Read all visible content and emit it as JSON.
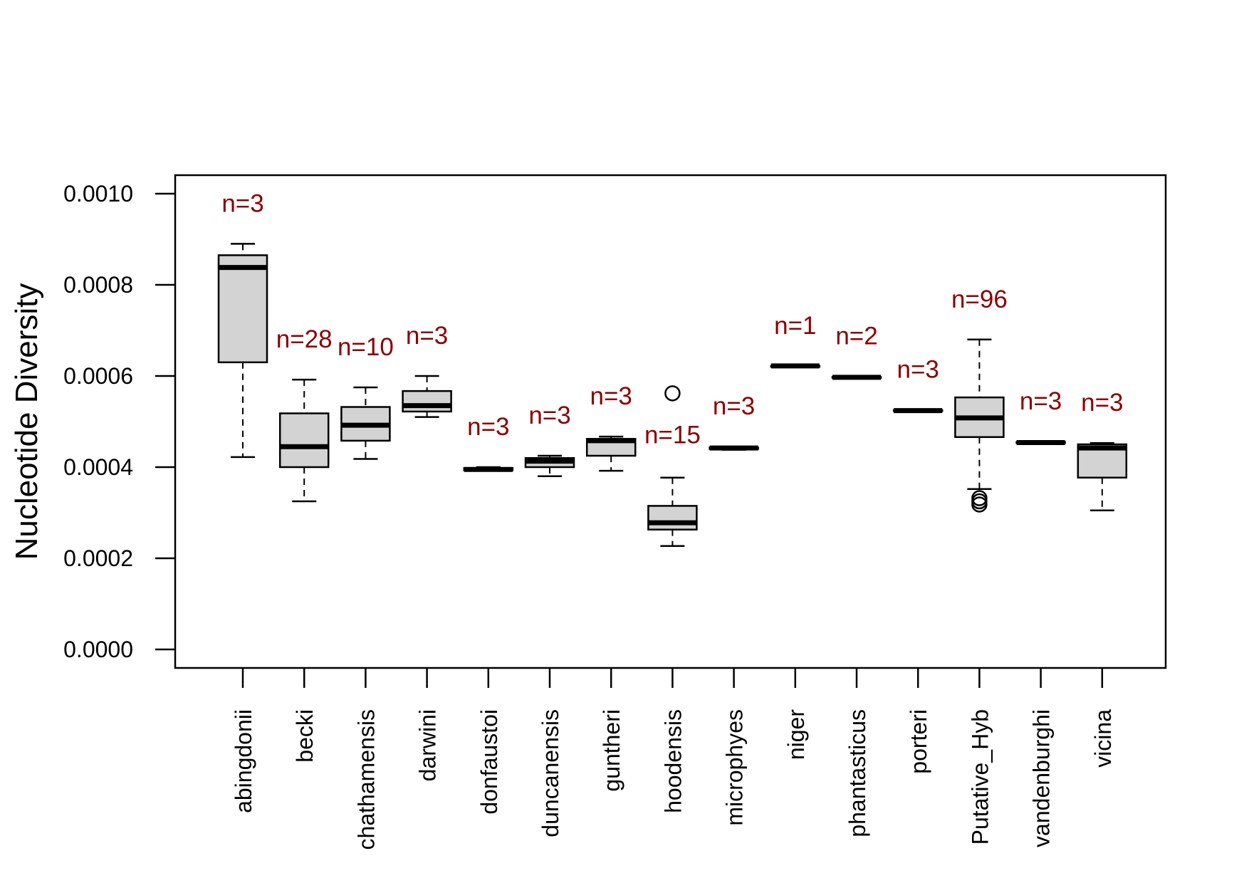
{
  "chart_data": {
    "type": "boxplot",
    "ylabel": "Nucleotide Diversity",
    "xlabel": "",
    "ylim": [
      0,
      0.00105
    ],
    "yticks": [
      "0.0000",
      "0.0002",
      "0.0004",
      "0.0006",
      "0.0008",
      "0.0010"
    ],
    "ytick_values": [
      0,
      0.0002,
      0.0004,
      0.0006,
      0.0008,
      0.001
    ],
    "grid": false,
    "colors": {
      "box_fill": "#d3d3d3",
      "count_label": "#8b0000",
      "line": "#000000"
    },
    "categories": [
      "abingdonii",
      "becki",
      "chathamensis",
      "darwini",
      "donfaustoi",
      "duncanensis",
      "guntheri",
      "hoodensis",
      "microphyes",
      "niger",
      "phantasticus",
      "porteri",
      "Putative_Hyb",
      "vandenburghi",
      "vicina"
    ],
    "counts": [
      "n=3",
      "n=28",
      "n=10",
      "n=3",
      "n=3",
      "n=3",
      "n=3",
      "n=15",
      "n=3",
      "n=1",
      "n=2",
      "n=3",
      "n=96",
      "n=3",
      "n=3"
    ],
    "boxes": [
      {
        "category": "abingdonii",
        "min": 0.000422,
        "q1": 0.00063,
        "median": 0.000838,
        "q3": 0.000865,
        "max": 0.00089,
        "outliers": []
      },
      {
        "category": "becki",
        "min": 0.000325,
        "q1": 0.0004,
        "median": 0.000445,
        "q3": 0.000518,
        "max": 0.000592,
        "outliers": []
      },
      {
        "category": "chathamensis",
        "min": 0.000418,
        "q1": 0.000458,
        "median": 0.000492,
        "q3": 0.000532,
        "max": 0.000575,
        "outliers": []
      },
      {
        "category": "darwini",
        "min": 0.00051,
        "q1": 0.000522,
        "median": 0.000535,
        "q3": 0.000567,
        "max": 0.0006,
        "outliers": []
      },
      {
        "category": "donfaustoi",
        "min": 0.000392,
        "q1": 0.000393,
        "median": 0.000395,
        "q3": 0.000398,
        "max": 0.0004,
        "outliers": []
      },
      {
        "category": "duncanensis",
        "min": 0.00038,
        "q1": 0.0004,
        "median": 0.000413,
        "q3": 0.00042,
        "max": 0.000425,
        "outliers": []
      },
      {
        "category": "guntheri",
        "min": 0.000392,
        "q1": 0.000425,
        "median": 0.000458,
        "q3": 0.000462,
        "max": 0.000467,
        "outliers": []
      },
      {
        "category": "hoodensis",
        "min": 0.000227,
        "q1": 0.000263,
        "median": 0.000278,
        "q3": 0.000315,
        "max": 0.000377,
        "outliers": [
          0.000562
        ]
      },
      {
        "category": "microphyes",
        "min": 0.000438,
        "q1": 0.00044,
        "median": 0.000442,
        "q3": 0.000443,
        "max": 0.000445,
        "outliers": []
      },
      {
        "category": "niger",
        "min": 0.000622,
        "q1": 0.000622,
        "median": 0.000622,
        "q3": 0.000622,
        "max": 0.000622,
        "outliers": []
      },
      {
        "category": "phantasticus",
        "min": 0.000595,
        "q1": 0.000596,
        "median": 0.000597,
        "q3": 0.000598,
        "max": 0.000599,
        "outliers": []
      },
      {
        "category": "porteri",
        "min": 0.000522,
        "q1": 0.000523,
        "median": 0.000524,
        "q3": 0.000525,
        "max": 0.000526,
        "outliers": []
      },
      {
        "category": "Putative_Hyb",
        "min": 0.000352,
        "q1": 0.000466,
        "median": 0.000508,
        "q3": 0.000553,
        "max": 0.00068,
        "outliers": [
          0.000332,
          0.000325,
          0.000318
        ]
      },
      {
        "category": "vandenburghi",
        "min": 0.000452,
        "q1": 0.000453,
        "median": 0.000454,
        "q3": 0.000455,
        "max": 0.000456,
        "outliers": []
      },
      {
        "category": "vicina",
        "min": 0.000305,
        "q1": 0.000377,
        "median": 0.000442,
        "q3": 0.00045,
        "max": 0.000453,
        "outliers": []
      }
    ]
  }
}
